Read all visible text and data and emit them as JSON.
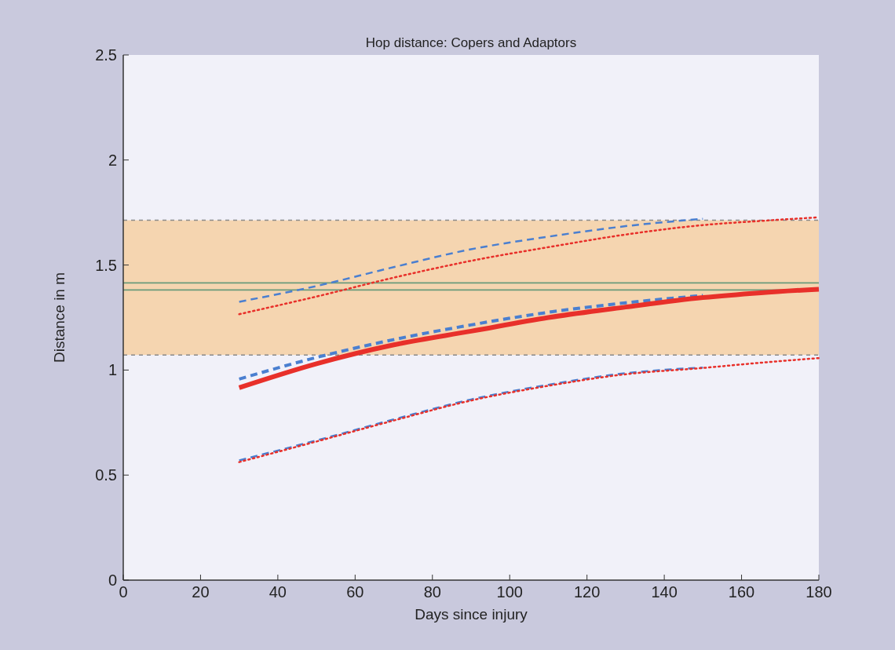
{
  "chart_data": {
    "type": "line",
    "title": "Hop distance: Copers and Adaptors",
    "xlabel": "Days since injury",
    "ylabel": "Distance in m",
    "x": [
      30,
      50,
      70,
      90,
      110,
      130,
      150,
      165,
      180
    ],
    "xlim": [
      0,
      180
    ],
    "xticks": [
      0,
      20,
      40,
      60,
      80,
      100,
      120,
      140,
      160,
      180
    ],
    "ylim": [
      0,
      2.5
    ],
    "yticks": [
      0,
      0.5,
      1,
      1.5,
      2,
      2.5
    ],
    "grid": false,
    "bands": [
      {
        "axis": "y",
        "from": 1.072,
        "to": 1.713,
        "color": "#f5d5b0"
      }
    ],
    "ref_lines": [
      {
        "axis": "y",
        "value": 1.415,
        "color": "#6a9a7a",
        "line_style": "solid"
      },
      {
        "axis": "y",
        "value": 1.381,
        "color": "#6a9a7a",
        "line_style": "solid"
      },
      {
        "axis": "y",
        "value": 1.713,
        "color": "#8a8a8a",
        "line_style": "dashed"
      },
      {
        "axis": "y",
        "value": 1.072,
        "color": "#8a8a8a",
        "line_style": "dashed"
      }
    ],
    "series": [
      {
        "color": "#4a7fd0",
        "line_style": "dashed",
        "values": [
          1.325,
          1.4,
          1.49,
          1.575,
          1.635,
          1.685,
          1.72,
          null,
          null
        ]
      },
      {
        "color": "#e8302a",
        "line_style": "dotted",
        "values": [
          1.266,
          1.35,
          1.44,
          1.52,
          1.585,
          1.645,
          1.69,
          1.71,
          1.727
        ]
      },
      {
        "color": "#4a7fd0",
        "line_style": "dashed",
        "values": [
          0.57,
          0.665,
          0.765,
          0.86,
          0.93,
          0.985,
          1.012,
          null,
          null
        ]
      },
      {
        "color": "#e8302a",
        "line_style": "dotted",
        "values": [
          0.562,
          0.66,
          0.76,
          0.855,
          0.925,
          0.98,
          1.01,
          1.035,
          1.057
        ]
      },
      {
        "color": "#4a7fd0",
        "line_style": "dashed",
        "values": [
          0.957,
          1.06,
          1.145,
          1.215,
          1.275,
          1.32,
          1.355,
          null,
          null
        ]
      },
      {
        "color": "#e8302a",
        "line_style": "solid",
        "values": [
          0.916,
          1.03,
          1.12,
          1.185,
          1.25,
          1.3,
          1.345,
          1.368,
          1.385
        ]
      }
    ]
  }
}
